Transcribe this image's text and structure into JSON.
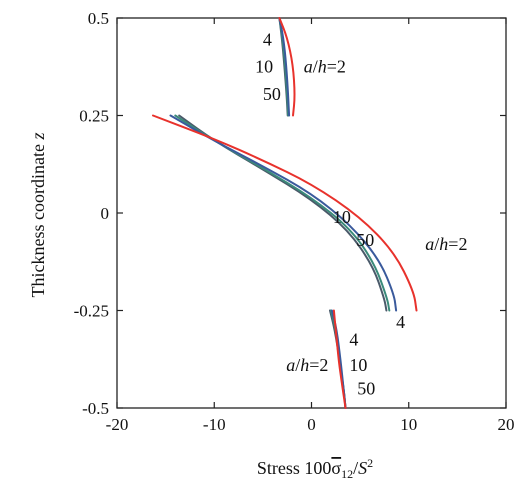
{
  "chart_data": {
    "type": "line",
    "xlabel_parts": {
      "prefix": "Stress 100",
      "sigma": "σ",
      "sub": "12",
      "mid": "/",
      "s": "S",
      "sup": "2"
    },
    "ylabel_parts": {
      "text": "Thickness coordinate ",
      "var": "z"
    },
    "xlim": [
      -20,
      20
    ],
    "ylim": [
      -0.5,
      0.5
    ],
    "xticks": [
      -20,
      -10,
      0,
      10,
      20
    ],
    "yticks": [
      -0.5,
      -0.25,
      0,
      0.25,
      0.5
    ],
    "xtick_labels": [
      "-20",
      "-10",
      "0",
      "10",
      "20"
    ],
    "ytick_labels": [
      "-0.5",
      "-0.25",
      "0",
      "0.25",
      "0.5"
    ],
    "grid": false,
    "colors": {
      "ah2": "#e8322c",
      "ah4": "#3a5a9c",
      "ah10": "#3a8a7a",
      "ah50": "#4a5a6a"
    },
    "series": [
      {
        "region": "top",
        "key": "ah2",
        "x": [
          -3.3,
          -2.5,
          -1.9,
          -1.7,
          -1.9
        ],
        "y": [
          0.5,
          0.45,
          0.38,
          0.3,
          0.25
        ]
      },
      {
        "region": "top",
        "key": "ah4",
        "x": [
          -3.3,
          -2.9,
          -2.6,
          -2.4,
          -2.3
        ],
        "y": [
          0.5,
          0.45,
          0.38,
          0.3,
          0.25
        ]
      },
      {
        "region": "top",
        "key": "ah10",
        "x": [
          -3.3,
          -3.0,
          -2.7,
          -2.5,
          -2.4
        ],
        "y": [
          0.5,
          0.45,
          0.38,
          0.3,
          0.25
        ]
      },
      {
        "region": "top",
        "key": "ah50",
        "x": [
          -3.3,
          -3.05,
          -2.8,
          -2.55,
          -2.45
        ],
        "y": [
          0.5,
          0.45,
          0.38,
          0.3,
          0.25
        ]
      },
      {
        "region": "middle",
        "key": "ah2",
        "x": [
          -16.3,
          -10,
          -5,
          0,
          5,
          8.5,
          10.5,
          10.8
        ],
        "y": [
          0.25,
          0.19,
          0.135,
          0.075,
          -0.01,
          -0.1,
          -0.2,
          -0.25
        ]
      },
      {
        "region": "middle",
        "key": "ah4",
        "x": [
          -14.5,
          -10,
          -5,
          0,
          4,
          7,
          8.5,
          8.7
        ],
        "y": [
          0.25,
          0.185,
          0.12,
          0.05,
          -0.03,
          -0.12,
          -0.21,
          -0.25
        ]
      },
      {
        "region": "middle",
        "key": "ah10",
        "x": [
          -14.0,
          -10,
          -5,
          0,
          4,
          6.5,
          7.8,
          8.0
        ],
        "y": [
          0.25,
          0.185,
          0.115,
          0.04,
          -0.04,
          -0.13,
          -0.22,
          -0.25
        ]
      },
      {
        "region": "middle",
        "key": "ah50",
        "x": [
          -13.6,
          -10,
          -5,
          0,
          3.8,
          6.3,
          7.5,
          7.7
        ],
        "y": [
          0.25,
          0.185,
          0.112,
          0.035,
          -0.045,
          -0.135,
          -0.22,
          -0.25
        ]
      },
      {
        "region": "bottom",
        "key": "ah2",
        "x": [
          2.3,
          2.5,
          2.8,
          3.2,
          3.5
        ],
        "y": [
          -0.25,
          -0.3,
          -0.38,
          -0.45,
          -0.5
        ]
      },
      {
        "region": "bottom",
        "key": "ah4",
        "x": [
          2.1,
          2.6,
          3.0,
          3.3,
          3.5
        ],
        "y": [
          -0.25,
          -0.3,
          -0.38,
          -0.45,
          -0.5
        ]
      },
      {
        "region": "bottom",
        "key": "ah10",
        "x": [
          2.0,
          2.5,
          2.9,
          3.3,
          3.5
        ],
        "y": [
          -0.25,
          -0.3,
          -0.38,
          -0.45,
          -0.5
        ]
      },
      {
        "region": "bottom",
        "key": "ah50",
        "x": [
          1.9,
          2.4,
          2.9,
          3.3,
          3.5
        ],
        "y": [
          -0.25,
          -0.3,
          -0.38,
          -0.45,
          -0.5
        ]
      }
    ],
    "annotations": [
      {
        "text": "4",
        "x": -5.0,
        "y": 0.43
      },
      {
        "text": "10",
        "x": -5.8,
        "y": 0.36
      },
      {
        "text": "50",
        "x": -5.0,
        "y": 0.29
      },
      {
        "a": "a",
        "rest": "/",
        "h": "h",
        "eq": "=2",
        "x": -0.8,
        "y": 0.36
      },
      {
        "text": "10",
        "x": 2.2,
        "y": -0.025
      },
      {
        "text": "50",
        "x": 4.6,
        "y": -0.085
      },
      {
        "a": "a",
        "rest": "/",
        "h": "h",
        "eq": "=2",
        "x": 11.7,
        "y": -0.095
      },
      {
        "text": "4",
        "x": 8.7,
        "y": -0.295
      },
      {
        "text": "4",
        "x": 3.9,
        "y": -0.34
      },
      {
        "a": "a",
        "rest": "/",
        "h": "h",
        "eq": "=2",
        "x": -2.6,
        "y": -0.405
      },
      {
        "text": "10",
        "x": 3.9,
        "y": -0.405
      },
      {
        "text": "50",
        "x": 4.7,
        "y": -0.465
      }
    ]
  }
}
